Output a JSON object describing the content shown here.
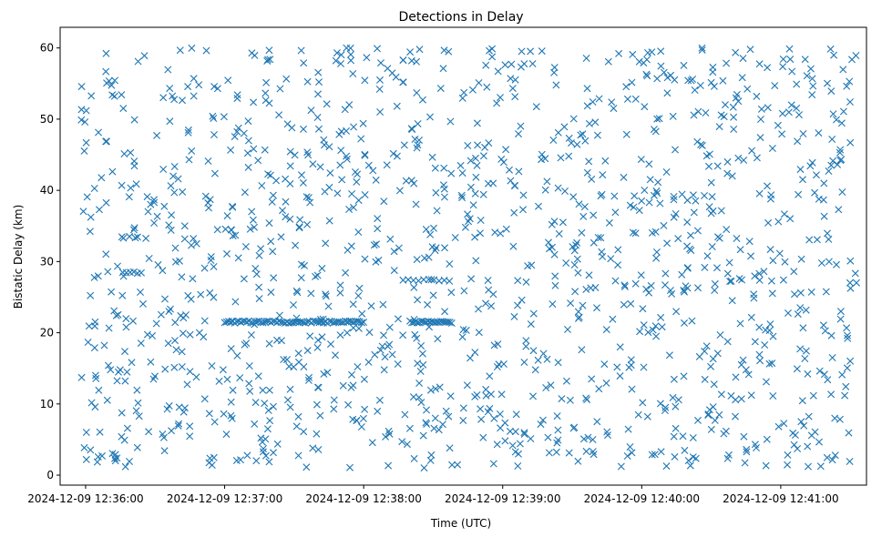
{
  "chart_data": {
    "type": "scatter",
    "title": "Detections in Delay",
    "xlabel": "Time (UTC)",
    "ylabel": "Bistatic Delay (km)",
    "marker": "x",
    "color": "#1f77b4",
    "grid": false,
    "x_unit": "seconds after 2024-12-09 12:36:00",
    "xlim": [
      -11,
      337
    ],
    "ylim": [
      -1.4,
      62.9
    ],
    "x_ticks": [
      {
        "value": 0,
        "label": "2024-12-09 12:36:00"
      },
      {
        "value": 60,
        "label": "2024-12-09 12:37:00"
      },
      {
        "value": 120,
        "label": "2024-12-09 12:38:00"
      },
      {
        "value": 180,
        "label": "2024-12-09 12:39:00"
      },
      {
        "value": 240,
        "label": "2024-12-09 12:40:00"
      },
      {
        "value": 300,
        "label": "2024-12-09 12:41:00"
      }
    ],
    "y_ticks": [
      {
        "value": 0,
        "label": "0"
      },
      {
        "value": 10,
        "label": "10"
      },
      {
        "value": 20,
        "label": "20"
      },
      {
        "value": 30,
        "label": "30"
      },
      {
        "value": 40,
        "label": "40"
      },
      {
        "value": 50,
        "label": "50"
      },
      {
        "value": 60,
        "label": "60"
      }
    ],
    "bands": [
      {
        "y": 21.5,
        "x_start": 60,
        "x_end": 120,
        "count": 70
      },
      {
        "y": 21.5,
        "x_start": 140,
        "x_end": 158,
        "count": 24
      },
      {
        "y": 27.4,
        "x_start": 137,
        "x_end": 157,
        "count": 10
      },
      {
        "y": 28.5,
        "x_start": 16,
        "x_end": 24,
        "count": 6
      },
      {
        "y": 26.2,
        "x_start": 216,
        "x_end": 220,
        "count": 3
      }
    ],
    "random_points": {
      "count": 1350,
      "x_range": [
        -2,
        333
      ],
      "y_range": [
        1,
        60
      ]
    }
  }
}
